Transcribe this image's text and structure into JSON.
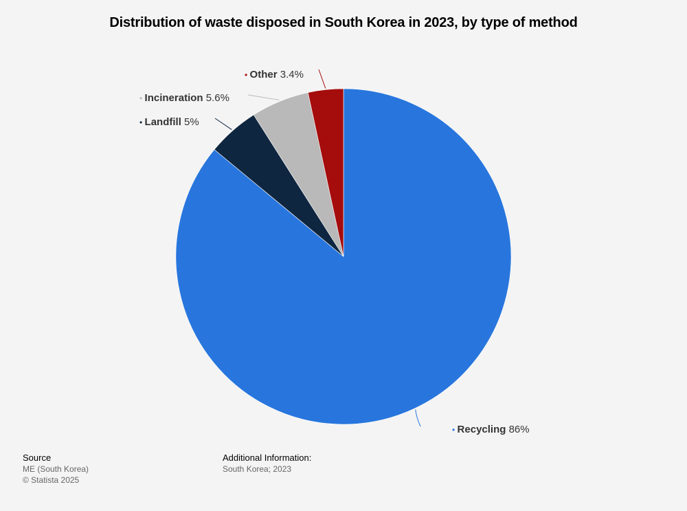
{
  "title": "Distribution of waste disposed in South Korea in 2023, by type of method",
  "chart_data": {
    "type": "pie",
    "title": "Distribution of waste disposed in South Korea in 2023, by type of method",
    "slices": [
      {
        "label": "Recycling",
        "value": 86,
        "value_label": "86%",
        "color": "#2876dd"
      },
      {
        "label": "Landfill",
        "value": 5,
        "value_label": "5%",
        "color": "#0f2640"
      },
      {
        "label": "Incineration",
        "value": 5.6,
        "value_label": "5.6%",
        "color": "#b9b9b9"
      },
      {
        "label": "Other",
        "value": 3.4,
        "value_label": "3.4%",
        "color": "#a50c0c"
      }
    ],
    "start_angle_deg": 0,
    "direction": "clockwise"
  },
  "footer": {
    "source_heading": "Source",
    "source_lines": [
      "ME (South Korea)",
      "© Statista 2025"
    ],
    "info_heading": "Additional Information:",
    "info_lines": [
      "South Korea; 2023"
    ]
  }
}
